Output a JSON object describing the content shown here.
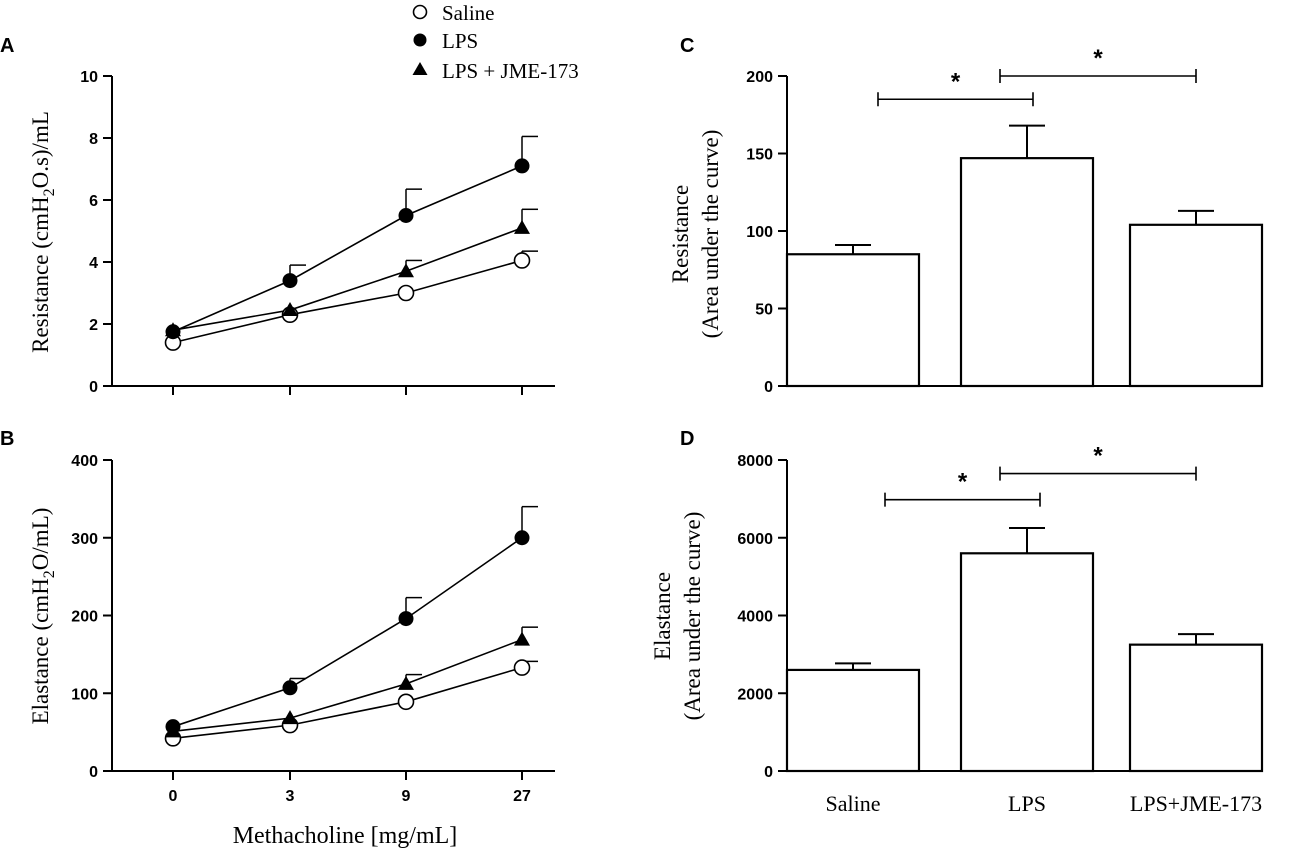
{
  "legend": {
    "position": "top-center",
    "entries": [
      {
        "label": "Saline",
        "marker": "open-circle"
      },
      {
        "label": "LPS",
        "marker": "filled-circle"
      },
      {
        "label": "LPS + JME-173",
        "marker": "filled-triangle"
      }
    ]
  },
  "shared_xlabel": "Methacholine [mg/mL]",
  "chart_data": [
    {
      "panel": "A",
      "type": "line",
      "categories": [
        "0",
        "3",
        "9",
        "27"
      ],
      "ylabel_parts": [
        "Resistance (cmH",
        "2",
        "O.s)/mL"
      ],
      "ylim": [
        0,
        10
      ],
      "yticks": [
        "0",
        "2",
        "4",
        "6",
        "8",
        "10"
      ],
      "ytick_values": [
        0,
        2,
        4,
        6,
        8,
        10
      ],
      "series": [
        {
          "name": "Saline",
          "marker": "open-circle",
          "values": [
            1.4,
            2.3,
            3.0,
            4.05
          ],
          "errors": [
            0,
            0,
            0,
            0.3
          ]
        },
        {
          "name": "LPS",
          "marker": "filled-circle",
          "values": [
            1.75,
            3.4,
            5.5,
            7.1
          ],
          "errors": [
            0,
            0.5,
            0.85,
            0.95
          ]
        },
        {
          "name": "LPS + JME-173",
          "marker": "filled-triangle",
          "values": [
            1.8,
            2.45,
            3.7,
            5.1
          ],
          "errors": [
            0,
            0,
            0.35,
            0.6
          ]
        }
      ]
    },
    {
      "panel": "B",
      "type": "line",
      "categories": [
        "0",
        "3",
        "9",
        "27"
      ],
      "ylabel_parts": [
        "Elastance (cmH",
        "2",
        "O/mL)"
      ],
      "ylim": [
        0,
        400
      ],
      "yticks": [
        "0",
        "100",
        "200",
        "300",
        "400"
      ],
      "ytick_values": [
        0,
        100,
        200,
        300,
        400
      ],
      "series": [
        {
          "name": "Saline",
          "marker": "open-circle",
          "values": [
            42,
            59,
            89,
            133
          ],
          "errors": [
            0,
            0,
            0,
            8
          ]
        },
        {
          "name": "LPS",
          "marker": "filled-circle",
          "values": [
            57,
            107,
            196,
            300
          ],
          "errors": [
            0,
            12,
            27,
            40
          ]
        },
        {
          "name": "LPS + JME-173",
          "marker": "filled-triangle",
          "values": [
            51,
            68,
            112,
            169
          ],
          "errors": [
            0,
            0,
            12,
            16
          ]
        }
      ]
    },
    {
      "panel": "C",
      "type": "bar",
      "categories": [
        "Saline",
        "LPS",
        "LPS+JME-173"
      ],
      "values": [
        85,
        147,
        104
      ],
      "errors": [
        6,
        21,
        9
      ],
      "ylabel_lines": [
        "Resistance",
        "(Area under the curve)"
      ],
      "ylim": [
        0,
        200
      ],
      "yticks": [
        "0",
        "50",
        "100",
        "150",
        "200"
      ],
      "ytick_values": [
        0,
        50,
        100,
        150,
        200
      ],
      "significance": [
        {
          "from": 0,
          "to": 1,
          "y": 185,
          "label": "*"
        },
        {
          "from": 1,
          "to": 2,
          "y": 200,
          "label": "*"
        }
      ]
    },
    {
      "panel": "D",
      "type": "bar",
      "categories": [
        "Saline",
        "LPS",
        "LPS+JME-173"
      ],
      "values": [
        2600,
        5600,
        3250
      ],
      "errors": [
        170,
        650,
        270
      ],
      "ylabel_lines": [
        "Elastance",
        "(Area under the curve)"
      ],
      "ylim": [
        0,
        8000
      ],
      "yticks": [
        "0",
        "2000",
        "4000",
        "6000",
        "8000"
      ],
      "ytick_values": [
        0,
        2000,
        4000,
        6000,
        8000
      ],
      "significance": [
        {
          "from": 0,
          "to": 1,
          "y": 6980,
          "label": "*"
        },
        {
          "from": 1,
          "to": 2,
          "y": 7650,
          "label": "*"
        }
      ]
    }
  ]
}
